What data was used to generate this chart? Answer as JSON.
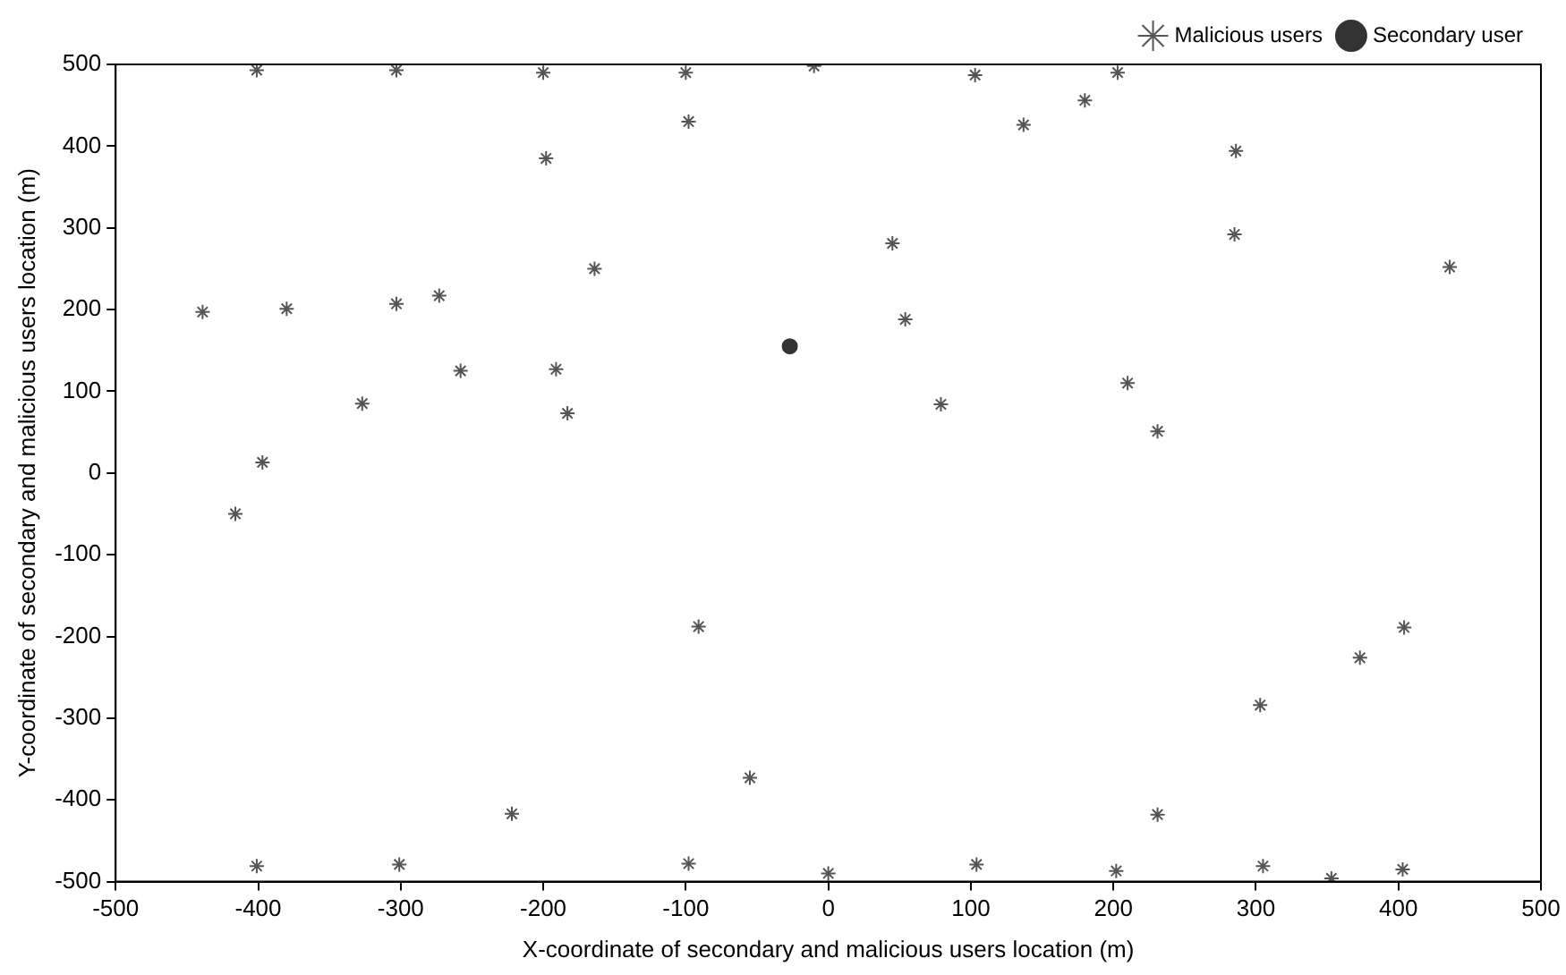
{
  "chart_data": {
    "type": "scatter",
    "xlabel": "X-coordinate of secondary and malicious users location (m)",
    "ylabel": "Y-coordinate of secondary and malicious users location (m)",
    "xlim": [
      -500,
      500
    ],
    "xticks": [
      -500,
      -400,
      -300,
      -200,
      -100,
      0,
      100,
      200,
      300,
      400,
      500
    ],
    "ylim": [
      -500,
      500
    ],
    "yticks": [
      -500,
      -400,
      -300,
      -200,
      -100,
      0,
      100,
      200,
      300,
      400,
      500
    ],
    "grid": false,
    "legend": "top right",
    "series": [
      {
        "name": "Malicious users",
        "color": "#555555",
        "marker": "cross",
        "x": [
          -439,
          -380,
          -303,
          -273,
          -327,
          -258,
          -397,
          -198,
          -164,
          -191,
          -183,
          -98,
          -401,
          -303,
          -200,
          -100,
          180,
          137,
          286,
          285,
          45,
          54,
          79,
          210,
          231,
          436,
          103,
          203,
          -10,
          -416,
          -91,
          -55,
          -222,
          -401,
          -301,
          -98,
          0,
          231,
          303,
          373,
          404,
          104,
          202,
          305,
          353,
          403
        ],
        "values": [
          197,
          201,
          207,
          217,
          85,
          125,
          13,
          385,
          250,
          127,
          73,
          430,
          493,
          493,
          490,
          490,
          456,
          426,
          394,
          292,
          281,
          188,
          84,
          110,
          51,
          252,
          487,
          490,
          498,
          -50,
          -188,
          -373,
          -417,
          -481,
          -479,
          -478,
          -490,
          -418,
          -284,
          -226,
          -189,
          -479,
          -487,
          -481,
          -496,
          -485
        ]
      },
      {
        "name": "Secondary user",
        "color": "#333333",
        "marker": "circle",
        "x": [
          -27
        ],
        "values": [
          155
        ]
      }
    ]
  }
}
